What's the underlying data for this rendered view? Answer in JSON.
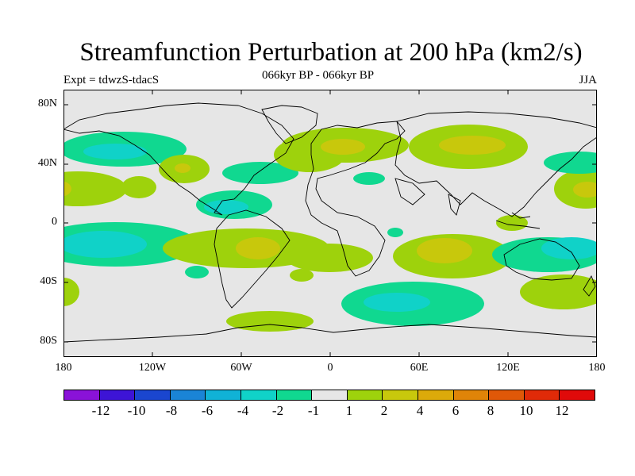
{
  "title": "Streamfunction Perturbation at 200 hPa (km2/s)",
  "expt_label": "Expt = tdwzS-tdacS",
  "subtitle": "066kyr BP - 066kyr BP",
  "season": "JJA",
  "lat_labels": [
    "80N",
    "40N",
    "0",
    "40S",
    "80S"
  ],
  "lon_labels": [
    "180",
    "120W",
    "60W",
    "0",
    "60E",
    "120E",
    "180"
  ],
  "colorbar": {
    "labels": [
      "-12",
      "-10",
      "-8",
      "-6",
      "-4",
      "-2",
      "-1",
      "1",
      "2",
      "4",
      "6",
      "8",
      "10",
      "12"
    ],
    "colors": [
      "#8a12d8",
      "#3d14d6",
      "#1a46cf",
      "#1a84d6",
      "#10b2d6",
      "#10d2c8",
      "#10d890",
      "#e6e6e6",
      "#9ed20c",
      "#c8c80c",
      "#dcaa0a",
      "#e08408",
      "#e05808",
      "#e02a08",
      "#e00a0a"
    ]
  },
  "chart_data": {
    "type": "heatmap",
    "title": "Streamfunction Perturbation at 200 hPa (km2/s)",
    "units": "km2/s",
    "projection": "cylindrical equidistant",
    "lon_range": [
      -180,
      180
    ],
    "lat_range": [
      -90,
      90
    ],
    "levels": [
      -12,
      -10,
      -8,
      -6,
      -4,
      -2,
      -1,
      1,
      2,
      4,
      6,
      8,
      10,
      12
    ],
    "anomalies": [
      {
        "name": "N Pacific negative",
        "lon": -150,
        "lat": 45,
        "value": -3
      },
      {
        "name": "Tropical E Pacific positive",
        "lon": -172,
        "lat": 20,
        "value": 2
      },
      {
        "name": "Tropical E Pacific positive 2",
        "lon": -130,
        "lat": 22,
        "value": 2
      },
      {
        "name": "N America positive",
        "lon": -95,
        "lat": 38,
        "value": 3
      },
      {
        "name": "Caribbean negative",
        "lon": -65,
        "lat": 8,
        "value": -3
      },
      {
        "name": "Mid Atlantic negative",
        "lon": -45,
        "lat": 42,
        "value": -2
      },
      {
        "name": "N Atlantic positive",
        "lon": -25,
        "lat": 62,
        "value": 2
      },
      {
        "name": "Europe positive",
        "lon": 10,
        "lat": 55,
        "value": 4
      },
      {
        "name": "Central Asia positive",
        "lon": 85,
        "lat": 52,
        "value": 3
      },
      {
        "name": "NW Pacific positive",
        "lon": 170,
        "lat": 22,
        "value": 3
      },
      {
        "name": "S Pacific negative",
        "lon": -160,
        "lat": -15,
        "value": -4
      },
      {
        "name": "S America positive",
        "lon": -60,
        "lat": -15,
        "value": 3
      },
      {
        "name": "Indian Ocean positive",
        "lon": 80,
        "lat": -25,
        "value": 4
      },
      {
        "name": "Australia negative",
        "lon": 140,
        "lat": -25,
        "value": -3
      },
      {
        "name": "Southern Ocean negative",
        "lon": 45,
        "lat": -55,
        "value": -4
      },
      {
        "name": "SW Pacific positive",
        "lon": 165,
        "lat": -45,
        "value": 2
      },
      {
        "name": "S Pacific mid-lat positive",
        "lon": -170,
        "lat": -45,
        "value": 2
      }
    ]
  }
}
